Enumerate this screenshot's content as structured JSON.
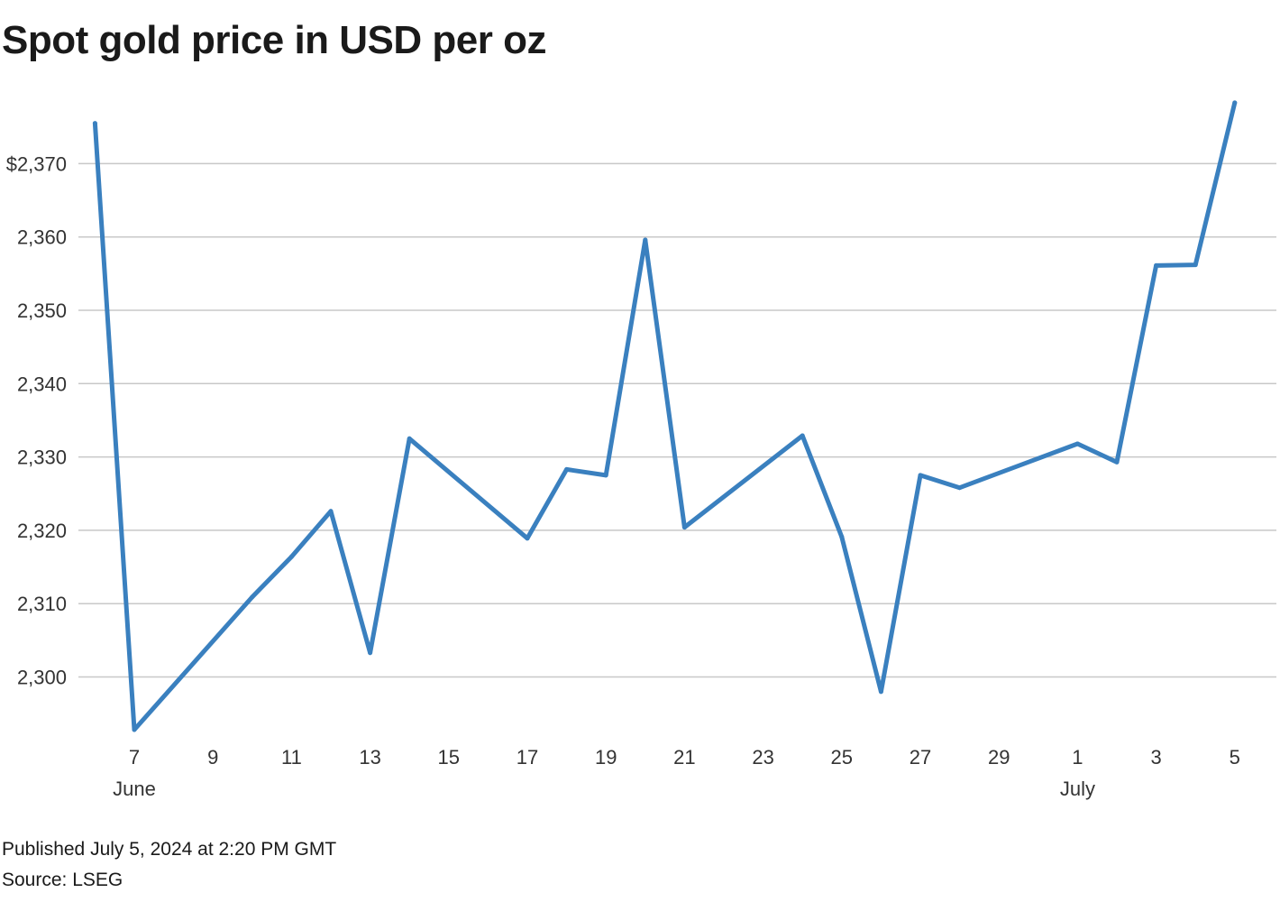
{
  "title": "Spot gold price in USD per oz",
  "footer": {
    "published": "Published July 5, 2024 at 2:20 PM GMT",
    "source": "Source: LSEG"
  },
  "colors": {
    "line": "#3a80bf",
    "grid": "#c8c8c8",
    "text": "#333333"
  },
  "chart_data": {
    "type": "line",
    "title": "Spot gold price in USD per oz",
    "xlabel": "",
    "ylabel": "",
    "ylim": [
      2290,
      2380
    ],
    "grid": true,
    "x_axis_type": "date",
    "y_ticks": [
      {
        "value": 2300,
        "label": "2,300"
      },
      {
        "value": 2310,
        "label": "2,310"
      },
      {
        "value": 2320,
        "label": "2,320"
      },
      {
        "value": 2330,
        "label": "2,330"
      },
      {
        "value": 2340,
        "label": "2,340"
      },
      {
        "value": 2350,
        "label": "2,350"
      },
      {
        "value": 2360,
        "label": "2,360"
      },
      {
        "value": 2370,
        "label": "$2,370"
      }
    ],
    "x_ticks": [
      {
        "date": "2024-06-07",
        "label": "7",
        "sublabel": "June"
      },
      {
        "date": "2024-06-09",
        "label": "9",
        "sublabel": ""
      },
      {
        "date": "2024-06-11",
        "label": "11",
        "sublabel": ""
      },
      {
        "date": "2024-06-13",
        "label": "13",
        "sublabel": ""
      },
      {
        "date": "2024-06-15",
        "label": "15",
        "sublabel": ""
      },
      {
        "date": "2024-06-17",
        "label": "17",
        "sublabel": ""
      },
      {
        "date": "2024-06-19",
        "label": "19",
        "sublabel": ""
      },
      {
        "date": "2024-06-21",
        "label": "21",
        "sublabel": ""
      },
      {
        "date": "2024-06-23",
        "label": "23",
        "sublabel": ""
      },
      {
        "date": "2024-06-25",
        "label": "25",
        "sublabel": ""
      },
      {
        "date": "2024-06-27",
        "label": "27",
        "sublabel": ""
      },
      {
        "date": "2024-06-29",
        "label": "29",
        "sublabel": ""
      },
      {
        "date": "2024-07-01",
        "label": "1",
        "sublabel": "July"
      },
      {
        "date": "2024-07-03",
        "label": "3",
        "sublabel": ""
      },
      {
        "date": "2024-07-05",
        "label": "5",
        "sublabel": ""
      }
    ],
    "series": [
      {
        "color": "#3a80bf",
        "points": [
          {
            "x": "2024-06-06",
            "y": 2375.5
          },
          {
            "x": "2024-06-07",
            "y": 2292.8
          },
          {
            "x": "2024-06-10",
            "y": 2310.9
          },
          {
            "x": "2024-06-11",
            "y": 2316.4
          },
          {
            "x": "2024-06-12",
            "y": 2322.6
          },
          {
            "x": "2024-06-13",
            "y": 2303.3
          },
          {
            "x": "2024-06-14",
            "y": 2332.5
          },
          {
            "x": "2024-06-17",
            "y": 2318.9
          },
          {
            "x": "2024-06-18",
            "y": 2328.3
          },
          {
            "x": "2024-06-19",
            "y": 2327.5
          },
          {
            "x": "2024-06-20",
            "y": 2359.6
          },
          {
            "x": "2024-06-21",
            "y": 2320.4
          },
          {
            "x": "2024-06-24",
            "y": 2332.9
          },
          {
            "x": "2024-06-25",
            "y": 2319.1
          },
          {
            "x": "2024-06-26",
            "y": 2298.0
          },
          {
            "x": "2024-06-27",
            "y": 2327.5
          },
          {
            "x": "2024-06-28",
            "y": 2325.8
          },
          {
            "x": "2024-07-01",
            "y": 2331.8
          },
          {
            "x": "2024-07-02",
            "y": 2329.3
          },
          {
            "x": "2024-07-03",
            "y": 2356.1
          },
          {
            "x": "2024-07-04",
            "y": 2356.2
          },
          {
            "x": "2024-07-05",
            "y": 2378.3
          }
        ]
      }
    ]
  }
}
